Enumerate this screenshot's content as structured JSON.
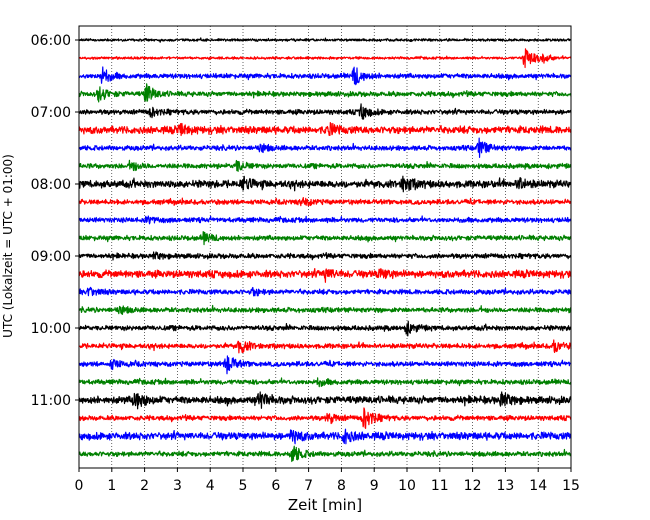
{
  "chart_data": {
    "type": "line",
    "title": "",
    "xlabel": "Zeit  [min]",
    "ylabel": "UTC (Lokalzeit = UTC + 01:00)",
    "xlim": [
      0,
      15
    ],
    "x_ticks": [
      "0",
      "1",
      "2",
      "3",
      "4",
      "5",
      "6",
      "7",
      "8",
      "9",
      "10",
      "11",
      "12",
      "13",
      "14",
      "15"
    ],
    "y_ticks": [
      "06:00",
      "07:00",
      "08:00",
      "09:00",
      "10:00",
      "11:00"
    ],
    "grid": "vertical dotted",
    "trace_interval_minutes": 15,
    "colors": [
      "#000000",
      "#ff0000",
      "#0000ff",
      "#008000"
    ],
    "traces": [
      {
        "start": "06:00",
        "color": "#000000",
        "amplitude": 1,
        "events": []
      },
      {
        "start": "06:15",
        "color": "#ff0000",
        "amplitude": 1,
        "events": [
          {
            "t": 13.6,
            "a": 12
          },
          {
            "t": 14.1,
            "a": 5
          }
        ]
      },
      {
        "start": "06:30",
        "color": "#0000ff",
        "amplitude": 2,
        "events": [
          {
            "t": 0.7,
            "a": 8
          },
          {
            "t": 8.4,
            "a": 9
          }
        ]
      },
      {
        "start": "06:45",
        "color": "#008000",
        "amplitude": 2,
        "events": [
          {
            "t": 0.6,
            "a": 7
          },
          {
            "t": 2.05,
            "a": 9
          }
        ]
      },
      {
        "start": "07:00",
        "color": "#000000",
        "amplitude": 2,
        "events": [
          {
            "t": 2.2,
            "a": 4
          },
          {
            "t": 8.6,
            "a": 7
          }
        ]
      },
      {
        "start": "07:15",
        "color": "#ff0000",
        "amplitude": 3,
        "events": [
          {
            "t": 3.1,
            "a": 4
          },
          {
            "t": 7.6,
            "a": 5
          }
        ]
      },
      {
        "start": "07:30",
        "color": "#0000ff",
        "amplitude": 2,
        "events": [
          {
            "t": 5.5,
            "a": 4
          },
          {
            "t": 12.2,
            "a": 8
          }
        ]
      },
      {
        "start": "07:45",
        "color": "#008000",
        "amplitude": 2,
        "events": [
          {
            "t": 1.6,
            "a": 4
          },
          {
            "t": 4.8,
            "a": 5
          }
        ]
      },
      {
        "start": "08:00",
        "color": "#000000",
        "amplitude": 3,
        "events": [
          {
            "t": 5.0,
            "a": 6
          },
          {
            "t": 9.9,
            "a": 8
          },
          {
            "t": 13.4,
            "a": 5
          }
        ]
      },
      {
        "start": "08:15",
        "color": "#ff0000",
        "amplitude": 2,
        "events": [
          {
            "t": 6.8,
            "a": 4
          }
        ]
      },
      {
        "start": "08:30",
        "color": "#0000ff",
        "amplitude": 2,
        "events": [
          {
            "t": 2.1,
            "a": 3
          }
        ]
      },
      {
        "start": "08:45",
        "color": "#008000",
        "amplitude": 2,
        "events": [
          {
            "t": 3.8,
            "a": 5
          }
        ]
      },
      {
        "start": "09:00",
        "color": "#000000",
        "amplitude": 2,
        "events": [
          {
            "t": 2.3,
            "a": 3
          }
        ]
      },
      {
        "start": "09:15",
        "color": "#ff0000",
        "amplitude": 3,
        "events": [
          {
            "t": 7.5,
            "a": 5
          },
          {
            "t": 9.2,
            "a": 4
          }
        ]
      },
      {
        "start": "09:30",
        "color": "#0000ff",
        "amplitude": 2,
        "events": [
          {
            "t": 0.3,
            "a": 4
          },
          {
            "t": 5.3,
            "a": 3
          }
        ]
      },
      {
        "start": "09:45",
        "color": "#008000",
        "amplitude": 2,
        "events": [
          {
            "t": 1.2,
            "a": 4
          }
        ]
      },
      {
        "start": "10:00",
        "color": "#000000",
        "amplitude": 2,
        "events": [
          {
            "t": 10.0,
            "a": 6
          }
        ]
      },
      {
        "start": "10:15",
        "color": "#ff0000",
        "amplitude": 2,
        "events": [
          {
            "t": 4.9,
            "a": 7
          },
          {
            "t": 14.5,
            "a": 5
          }
        ]
      },
      {
        "start": "10:30",
        "color": "#0000ff",
        "amplitude": 2,
        "events": [
          {
            "t": 4.5,
            "a": 9
          },
          {
            "t": 1.0,
            "a": 4
          }
        ]
      },
      {
        "start": "10:45",
        "color": "#008000",
        "amplitude": 2,
        "events": [
          {
            "t": 7.3,
            "a": 3
          }
        ]
      },
      {
        "start": "11:00",
        "color": "#000000",
        "amplitude": 3,
        "events": [
          {
            "t": 1.7,
            "a": 9
          },
          {
            "t": 5.5,
            "a": 8
          },
          {
            "t": 12.9,
            "a": 7
          }
        ]
      },
      {
        "start": "11:15",
        "color": "#ff0000",
        "amplitude": 2,
        "events": [
          {
            "t": 8.7,
            "a": 11
          },
          {
            "t": 7.6,
            "a": 5
          }
        ]
      },
      {
        "start": "11:30",
        "color": "#0000ff",
        "amplitude": 3,
        "events": [
          {
            "t": 6.5,
            "a": 6
          },
          {
            "t": 8.1,
            "a": 6
          }
        ]
      },
      {
        "start": "11:45",
        "color": "#008000",
        "amplitude": 2,
        "events": [
          {
            "t": 6.5,
            "a": 9
          }
        ]
      }
    ]
  }
}
